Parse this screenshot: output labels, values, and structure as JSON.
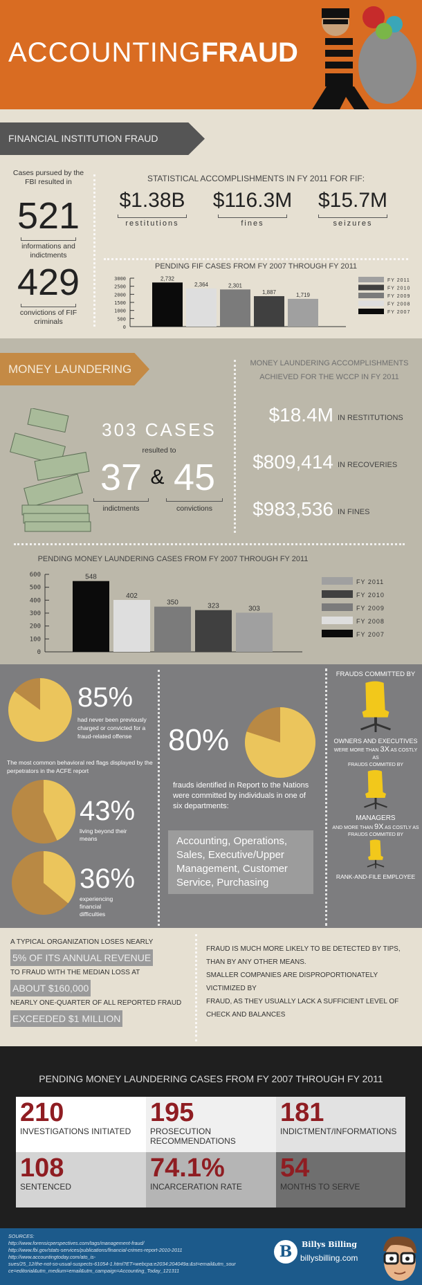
{
  "header": {
    "title_light": "ACCOUNTING",
    "title_bold": "FRAUD"
  },
  "fif": {
    "banner": "FINANCIAL INSTITUTION FRAUD",
    "cases_intro": "Cases pursued by the FBI resulted in",
    "informations_value": "521",
    "informations_label": "informations and indictments",
    "convictions_value": "429",
    "convictions_label": "convictions of FIF criminals",
    "stats_title": "STATISTICAL ACCOMPLISHMENTS IN FY 2011 FOR FIF:",
    "stats": [
      {
        "value": "$1.38B",
        "label": "restitutions"
      },
      {
        "value": "$116.3M",
        "label": "fines"
      },
      {
        "value": "$15.7M",
        "label": "seizures"
      }
    ]
  },
  "ml": {
    "banner": "MONEY LAUNDERING",
    "cases": "303 CASES",
    "resulted": "resulted to",
    "indictments_value": "37",
    "amp": "&",
    "convictions_value": "45",
    "indictments_label": "indictments",
    "convictions_label": "convictions",
    "acc_title_1": "MONEY LAUNDERING ACCOMPLISHMENTS",
    "acc_title_2": "ACHIEVED FOR THE WCCP IN FY 2011",
    "acc": [
      {
        "value": "$18.4M",
        "label": "IN RESTITUTIONS"
      },
      {
        "value": "$809,414",
        "label": "IN RECOVERIES"
      },
      {
        "value": "$983,536",
        "label": "IN FINES"
      }
    ]
  },
  "chart_data": [
    {
      "type": "bar",
      "title": "PENDING FIF CASES FROM FY 2007 THROUGH FY 2011",
      "categories": [
        "FY 2007",
        "FY 2008",
        "FY 2009",
        "FY 2010",
        "FY 2011"
      ],
      "values": [
        2732,
        2364,
        2301,
        1887,
        1719
      ],
      "value_labels": [
        "2,732",
        "2,364",
        "2,301",
        "1,887",
        "1,719"
      ],
      "ylim": [
        0,
        3000
      ],
      "yticks": [
        0,
        500,
        1000,
        1500,
        2000,
        2500,
        3000
      ],
      "colors": [
        "#0b0b0b",
        "#dedede",
        "#7b7b7b",
        "#404040",
        "#a0a0a0"
      ],
      "legend": [
        "FY 2011",
        "FY 2010",
        "FY 2009",
        "FY 2008",
        "FY 2007"
      ],
      "legend_placement": "right"
    },
    {
      "type": "bar",
      "title": "PENDING MONEY LAUNDERING CASES FROM FY 2007 THROUGH FY 2011",
      "categories": [
        "FY 2007",
        "FY 2008",
        "FY 2009",
        "FY 2010",
        "FY 2011"
      ],
      "values": [
        548,
        402,
        350,
        323,
        303
      ],
      "value_labels": [
        "548",
        "402",
        "350",
        "323",
        "303"
      ],
      "ylim": [
        0,
        600
      ],
      "yticks": [
        0,
        100,
        200,
        300,
        400,
        500,
        600
      ],
      "colors": [
        "#0b0b0b",
        "#dedede",
        "#7b7b7b",
        "#404040",
        "#a0a0a0"
      ],
      "legend": [
        "FY 2011",
        "FY 2010",
        "FY 2009",
        "FY 2008",
        "FY 2007"
      ],
      "legend_placement": "right"
    },
    {
      "type": "pie",
      "values": [
        85,
        15
      ],
      "label": "85%"
    },
    {
      "type": "pie",
      "values": [
        43,
        57
      ],
      "label": "43%"
    },
    {
      "type": "pie",
      "values": [
        36,
        64
      ],
      "label": "36%"
    },
    {
      "type": "pie",
      "values": [
        80,
        20
      ],
      "label": "80%"
    }
  ],
  "flags": {
    "p85": "85%",
    "p85_text": "had never been previously charged or convicted for a fraud-related offense",
    "intro": "The most common behavioral red flags displayed by the perpetrators in the ACFE report",
    "p43": "43%",
    "p43_text": "living beyond their means",
    "p36": "36%",
    "p36_text": "experiencing financial difficulties",
    "p80": "80%",
    "p80_text": "frauds identified in Report to the Nations were committed by individuals in one of six departments:",
    "departments": "Accounting, Operations, Sales, Executive/Upper Management, Customer Service, Purchasing",
    "pie_colors": {
      "yellow": "#ebc55c",
      "brown": "#b98944"
    }
  },
  "committed": {
    "title": "FRAUDS COMMITTED BY",
    "owners": "OWNERS AND EXECUTIVES",
    "owners_note_a": "WERE MORE THAN",
    "owners_x": "3X",
    "owners_note_b": "AS COSTLY AS",
    "owners_note_c": "FRAUDS COMMITED BY",
    "managers": "MANAGERS",
    "managers_note_a": "AND MORE THAN",
    "managers_x": "9X",
    "managers_note_b": "AS COSTLY AS",
    "managers_note_c": "FRAUDS COMMITED BY",
    "rank": "RANK-AND-FILE EMPLOYEE"
  },
  "facts": {
    "l1": "A TYPICAL ORGANIZATION LOSES NEARLY",
    "h1": "5% OF ITS ANNUAL REVENUE",
    "l2": "TO FRAUD WITH THE MEDIAN LOSS AT",
    "h2": "ABOUT $160,000",
    "l3": "NEARLY ONE-QUARTER OF ALL REPORTED FRAUD",
    "h3": "EXCEEDED $1 MILLION",
    "r1": "FRAUD IS MUCH MORE LIKELY TO BE DETECTED BY TIPS,",
    "r2": "THAN BY ANY OTHER MEANS.",
    "r3": "SMALLER COMPANIES ARE DISPROPORTIONATELY VICTIMIZED BY",
    "r4": "FRAUD, AS THEY USUALLY LACK A SUFFICIENT LEVEL OF",
    "r5": "CHECK AND BALANCES"
  },
  "pending": {
    "title": "PENDING MONEY LAUNDERING CASES FROM FY 2007 THROUGH FY 2011",
    "cells": [
      {
        "value": "210",
        "label": "INVESTIGATIONS INITIATED"
      },
      {
        "value": "195",
        "label": "PROSECUTION RECOMMENDATIONS"
      },
      {
        "value": "181",
        "label": "INDICTMENT/INFORMATIONS"
      },
      {
        "value": "108",
        "label": "SENTENCED"
      },
      {
        "value": "74.1%",
        "label": "INCARCERATION RATE"
      },
      {
        "value": "54",
        "label": "MONTHS TO SERVE"
      }
    ]
  },
  "footer": {
    "sources_title": "SOURCES:",
    "sources": [
      "http://www.forensicperspectives.com/tags/management-fraud/",
      "http://www.fbi.gov/stats-services/publications/financial-crimes-report-2010-2011",
      "http://www.accountingtoday.com/ato_is-",
      "sues/25_12/the-not-so-usual-suspects-61054-1.html?ET=webcpa:e2034:204049a:&st=email&utm_sour",
      "ce=editorial&utm_medium=email&utm_campaign=Accounting_Today_121311"
    ],
    "brand_letter": "B",
    "brand_name": "Billys Billing",
    "brand_url": "billysbilling.com"
  }
}
